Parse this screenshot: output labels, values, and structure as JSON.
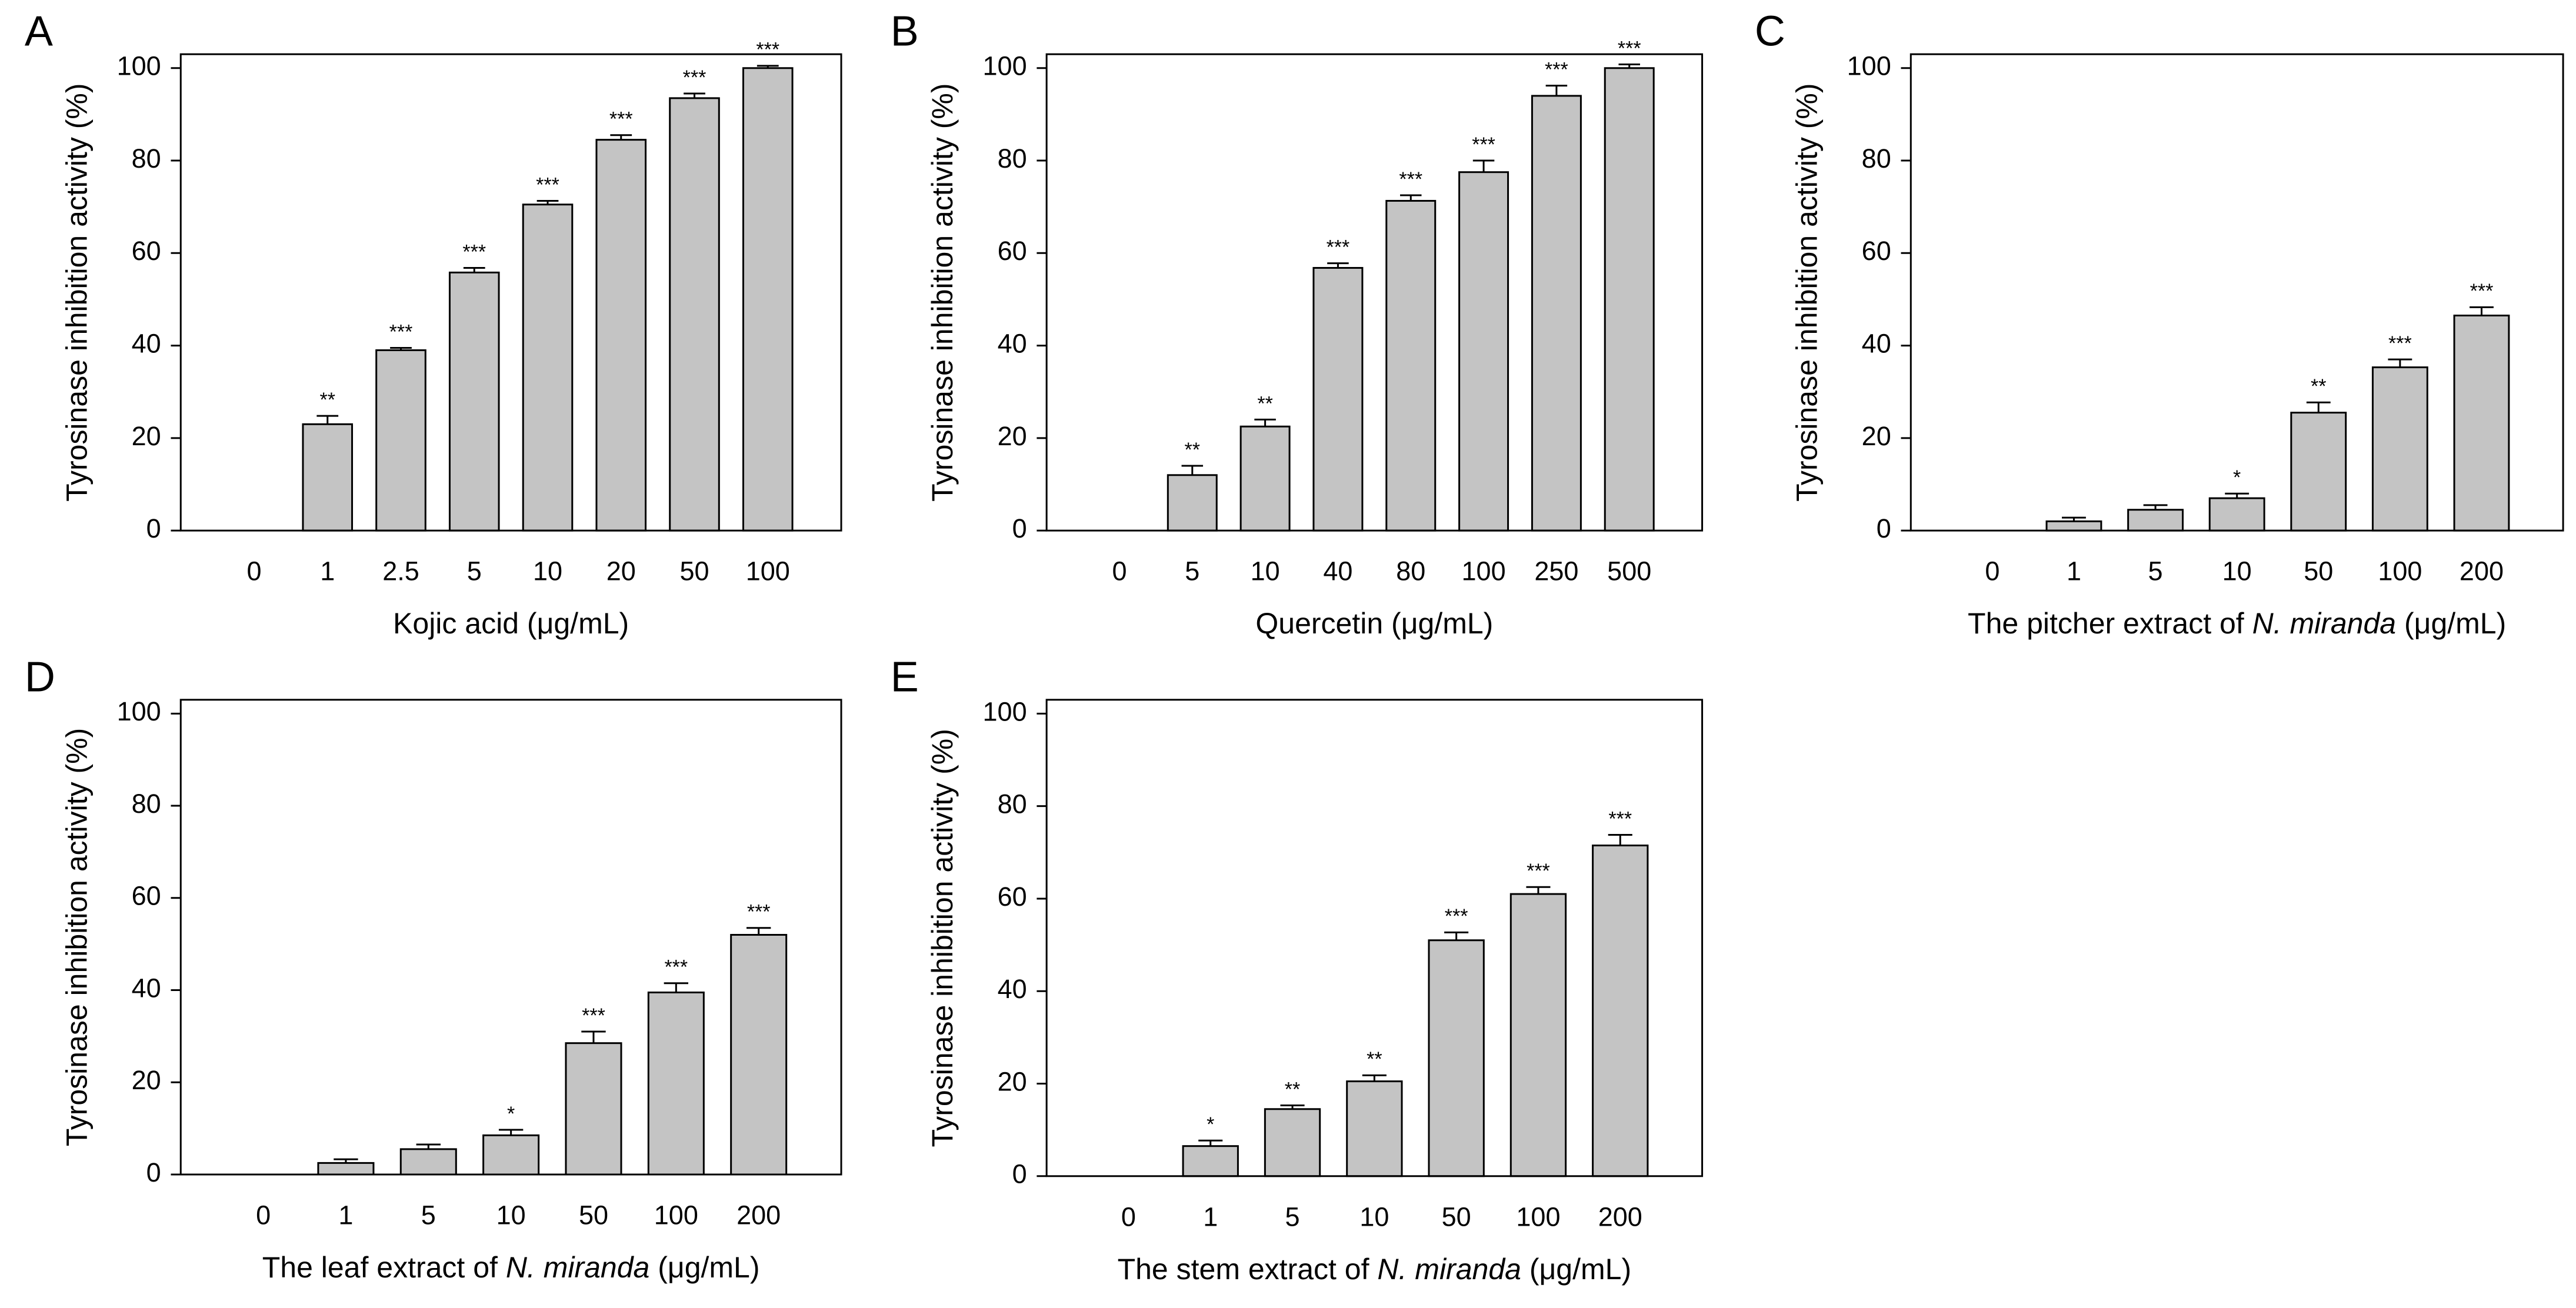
{
  "chart_data": [
    {
      "type": "bar",
      "panel": "A",
      "y_label": "Tyrosinase inhibition activity (%)",
      "x_label": [
        {
          "text": "Kojic acid (μg/mL)"
        }
      ],
      "categories": [
        "0",
        "1",
        "2.5",
        "5",
        "10",
        "20",
        "50",
        "100"
      ],
      "values": [
        0,
        23,
        39,
        55.8,
        70.5,
        84.5,
        93.5,
        100
      ],
      "errors": [
        0,
        1.8,
        0.5,
        1,
        0.8,
        1,
        1,
        0.5
      ],
      "annotations": [
        null,
        "**",
        "***",
        "***",
        "***",
        "***",
        "***",
        "***"
      ],
      "color": "#c4c4c4",
      "ylim": [
        0,
        103
      ],
      "yticks": [
        0,
        20,
        40,
        60,
        80,
        100
      ]
    },
    {
      "type": "bar",
      "panel": "B",
      "y_label": "Tyrosinase inhibition activity (%)",
      "x_label": [
        {
          "text": "Quercetin (μg/mL)"
        }
      ],
      "categories": [
        "0",
        "5",
        "10",
        "40",
        "80",
        "100",
        "250",
        "500"
      ],
      "values": [
        0,
        12,
        22.5,
        56.8,
        71.3,
        77.5,
        94,
        100
      ],
      "errors": [
        0,
        2,
        1.5,
        1,
        1.2,
        2.5,
        2.2,
        0.8
      ],
      "annotations": [
        null,
        "**",
        "**",
        "***",
        "***",
        "***",
        "***",
        "***"
      ],
      "color": "#c4c4c4",
      "ylim": [
        0,
        103
      ],
      "yticks": [
        0,
        20,
        40,
        60,
        80,
        100
      ]
    },
    {
      "type": "bar",
      "panel": "C",
      "y_label": "Tyrosinase inhibition activity (%)",
      "x_label": [
        {
          "text": "The pitcher extract of "
        },
        {
          "text": "N. miranda",
          "italic": true
        },
        {
          "text": " (μg/mL)"
        }
      ],
      "categories": [
        "0",
        "1",
        "5",
        "10",
        "50",
        "100",
        "200"
      ],
      "values": [
        0,
        2,
        4.5,
        7,
        25.5,
        35.3,
        46.5
      ],
      "errors": [
        0,
        0.8,
        1,
        1,
        2.2,
        1.7,
        1.8
      ],
      "annotations": [
        null,
        null,
        null,
        "*",
        "**",
        "***",
        "***"
      ],
      "color": "#c4c4c4",
      "ylim": [
        0,
        103
      ],
      "yticks": [
        0,
        20,
        40,
        60,
        80,
        100
      ]
    },
    {
      "type": "bar",
      "panel": "D",
      "y_label": "Tyrosinase inhibition activity (%)",
      "x_label": [
        {
          "text": "The leaf extract of "
        },
        {
          "text": "N. miranda",
          "italic": true
        },
        {
          "text": " (μg/mL)"
        }
      ],
      "categories": [
        "0",
        "1",
        "5",
        "10",
        "50",
        "100",
        "200"
      ],
      "values": [
        0,
        2.5,
        5.5,
        8.5,
        28.5,
        39.5,
        52
      ],
      "errors": [
        0,
        0.8,
        1,
        1.2,
        2.5,
        2,
        1.5
      ],
      "annotations": [
        null,
        null,
        null,
        "*",
        "***",
        "***",
        "***"
      ],
      "color": "#c4c4c4",
      "ylim": [
        0,
        103
      ],
      "yticks": [
        0,
        20,
        40,
        60,
        80,
        100
      ]
    },
    {
      "type": "bar",
      "panel": "E",
      "y_label": "Tyrosinase inhibition activity (%)",
      "x_label": [
        {
          "text": "The stem extract of "
        },
        {
          "text": "N. miranda",
          "italic": true
        },
        {
          "text": " (μg/mL)"
        }
      ],
      "categories": [
        "0",
        "1",
        "5",
        "10",
        "50",
        "100",
        "200"
      ],
      "values": [
        0,
        6.5,
        14.5,
        20.5,
        51,
        61,
        71.5
      ],
      "errors": [
        0,
        1.2,
        0.8,
        1.3,
        1.7,
        1.5,
        2.3
      ],
      "annotations": [
        null,
        "*",
        "**",
        "**",
        "***",
        "***",
        "***"
      ],
      "color": "#c4c4c4",
      "ylim": [
        0,
        103
      ],
      "yticks": [
        0,
        20,
        40,
        60,
        80,
        100
      ]
    }
  ]
}
